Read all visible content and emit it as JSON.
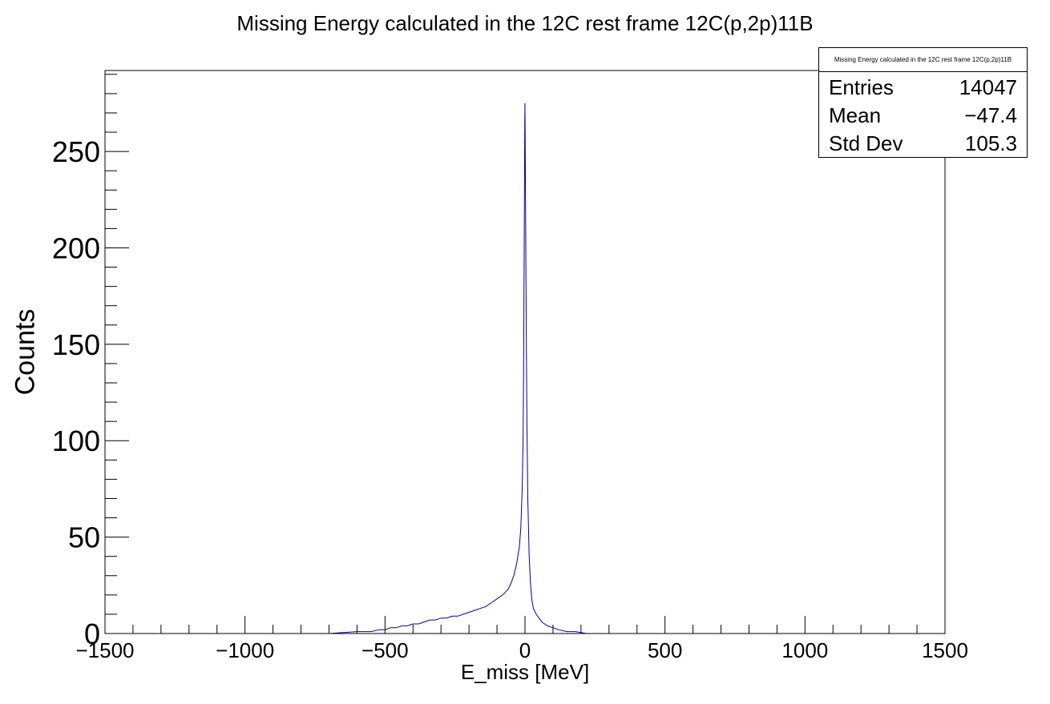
{
  "chart_data": {
    "type": "histogram",
    "title": "Missing Energy calculated in the 12C rest frame 12C(p,2p)11B",
    "xlabel": "E_miss [MeV]",
    "ylabel": "Counts",
    "xlim": [
      -1500,
      1500
    ],
    "ylim": [
      0,
      292
    ],
    "x_ticks": [
      -1500,
      -1000,
      -500,
      0,
      500,
      1000,
      1500
    ],
    "x_tick_labels": [
      "−1500",
      "−1000",
      "−500",
      "0",
      "500",
      "1000",
      "1500"
    ],
    "y_ticks": [
      0,
      50,
      100,
      150,
      200,
      250
    ],
    "y_tick_labels": [
      "0",
      "50",
      "100",
      "150",
      "200",
      "250"
    ],
    "line_color": "#000099",
    "series": [
      {
        "x": [
          -700,
          -600,
          -550,
          -520,
          -500,
          -480,
          -460,
          -440,
          -420,
          -400,
          -380,
          -360,
          -340,
          -320,
          -300,
          -280,
          -260,
          -240,
          -220,
          -200,
          -180,
          -160,
          -140,
          -120,
          -100,
          -80,
          -60,
          -50,
          -40,
          -30,
          -20,
          -15,
          -10,
          -7,
          -5,
          -3,
          -1,
          0,
          1,
          3,
          5,
          7,
          10,
          15,
          20,
          25,
          30,
          40,
          50,
          60,
          80,
          100,
          120,
          150,
          180,
          220
        ],
        "y": [
          0,
          1,
          1,
          2,
          2,
          3,
          3,
          4,
          4,
          5,
          5,
          6,
          7,
          7,
          8,
          8,
          9,
          9,
          10,
          11,
          12,
          13,
          14,
          16,
          18,
          20,
          23,
          26,
          30,
          36,
          45,
          55,
          75,
          100,
          140,
          200,
          265,
          275,
          250,
          200,
          150,
          110,
          70,
          40,
          25,
          17,
          13,
          10,
          8,
          6,
          4,
          3,
          2,
          1,
          1,
          0
        ]
      }
    ],
    "stats": {
      "title": "Missing Energy calculated in the 12C rest frame 12C(p,2p)11B",
      "entries_label": "Entries",
      "entries": "14047",
      "mean_label": "Mean",
      "mean": "−47.4",
      "stddev_label": "Std Dev",
      "stddev": "105.3"
    }
  }
}
